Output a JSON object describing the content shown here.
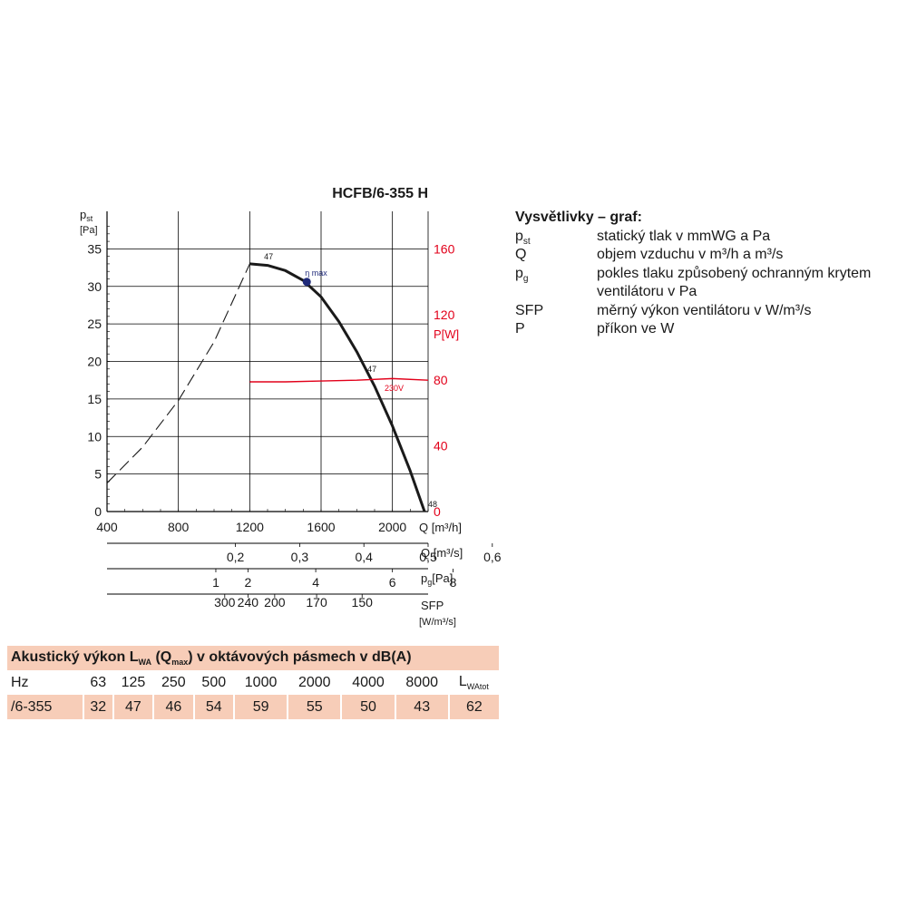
{
  "chart_data": {
    "type": "line",
    "title": "HCFB/6-355 H",
    "x_axis": {
      "label": "Q [m³/h]",
      "range": [
        400,
        2200
      ],
      "ticks": [
        "400",
        "800",
        "1200",
        "1600",
        "2000"
      ]
    },
    "y_axis_left": {
      "label": "p",
      "label_sub": "st",
      "unit": "[Pa]",
      "range": [
        0,
        35
      ],
      "ticks": [
        "0",
        "5",
        "10",
        "15",
        "20",
        "25",
        "30",
        "35"
      ]
    },
    "y_axis_right": {
      "label": "P",
      "unit": "[W]",
      "range": [
        0,
        160
      ],
      "ticks": [
        "0",
        "40",
        "80",
        "120",
        "160"
      ],
      "color": "#e2001a"
    },
    "secondary_scales": [
      {
        "label": "Q [m³/s]",
        "ticks": [
          {
            "text": "0,2",
            "x": 1120
          },
          {
            "text": "0,3",
            "x": 1480
          },
          {
            "text": "0,4",
            "x": 1840
          },
          {
            "text": "0,5",
            "x": 2200
          },
          {
            "text": "0,6",
            "x": 2560
          }
        ]
      },
      {
        "label": "p",
        "label_sub": "g",
        "unit": "[Pa]",
        "ticks": [
          {
            "text": "1",
            "x": 1010
          },
          {
            "text": "2",
            "x": 1190
          },
          {
            "text": "4",
            "x": 1570
          },
          {
            "text": "6",
            "x": 2000
          },
          {
            "text": "8",
            "x": 2340
          }
        ]
      },
      {
        "label": "SFP",
        "unit": "[W/m³/s]",
        "ticks": [
          {
            "text": "300",
            "x": 1060
          },
          {
            "text": "240",
            "x": 1190
          },
          {
            "text": "200",
            "x": 1340
          },
          {
            "text": "170",
            "x": 1575
          },
          {
            "text": "150",
            "x": 1830
          }
        ]
      }
    ],
    "series": [
      {
        "type": "pressure",
        "style": "dashed",
        "color": "#1a1a1a",
        "x": [
          400,
          600,
          800,
          1000,
          1200
        ],
        "y": [
          3.8,
          8.6,
          14.8,
          22.6,
          33.0
        ]
      },
      {
        "type": "pressure",
        "style": "solid",
        "color": "#1a1a1a",
        "x": [
          1200,
          1300,
          1400,
          1500,
          1600,
          1700,
          1800,
          1900,
          2000,
          2100,
          2180
        ],
        "y": [
          33.0,
          32.8,
          32.1,
          30.8,
          28.6,
          25.3,
          21.3,
          16.7,
          11.4,
          5.4,
          0
        ]
      },
      {
        "name": "230V",
        "type": "power",
        "axis": "right",
        "style": "solid",
        "color": "#e2001a",
        "x": [
          1200,
          1400,
          1600,
          1800,
          2000,
          2200
        ],
        "y": [
          79,
          79,
          79.5,
          80,
          81,
          80
        ]
      }
    ],
    "annotations": [
      {
        "text": "47",
        "x": 1280,
        "y": 33.6
      },
      {
        "text": "η max",
        "x": 1510,
        "y": 31.4,
        "color": "#1f2a7a"
      },
      {
        "text": "47",
        "x": 1860,
        "y": 18.6
      },
      {
        "text": "48",
        "x": 2200,
        "y": 0.6
      }
    ],
    "highlight_point": {
      "label": "η max",
      "x": 1520,
      "y": 30.6,
      "color": "#1f2a7a"
    },
    "grid": true,
    "legend": "right"
  },
  "legend_panel": {
    "title": "Vysvětlivky – graf:",
    "items": [
      {
        "symbol": "p",
        "symbol_sub": "st",
        "description": "statický tlak v mmWG a Pa"
      },
      {
        "symbol": "Q",
        "description": "objem vzduchu v m³/h a m³/s"
      },
      {
        "symbol": "p",
        "symbol_sub": "g",
        "description": "pokles tlaku způsobený ochranným krytem ventilátoru v Pa"
      },
      {
        "symbol": "SFP",
        "description": "měrný výkon ventilátoru v W/m³/s"
      },
      {
        "symbol": "P",
        "description": "příkon ve W"
      }
    ]
  },
  "acoustic_table": {
    "title_parts": {
      "a": "Akustický výkon L",
      "b": "WA",
      "c": " (Q",
      "d": "max",
      "e": ") v oktávových pásmech v dB(A)"
    },
    "header": {
      "label": "Hz",
      "freqs": [
        "63",
        "125",
        "250",
        "500",
        "1000",
        "2000",
        "4000",
        "8000"
      ],
      "total": "L",
      "total_sub": "WAtot"
    },
    "row": {
      "label": "/6-355",
      "values": [
        "32",
        "47",
        "46",
        "54",
        "59",
        "55",
        "50",
        "43"
      ],
      "total": "62"
    }
  }
}
